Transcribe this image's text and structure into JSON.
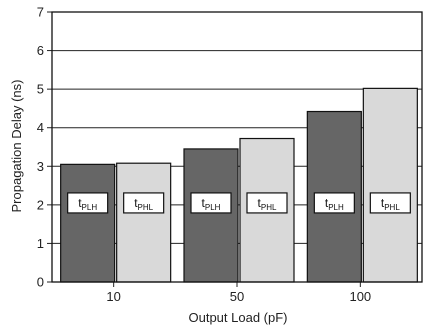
{
  "chart_data": {
    "type": "bar",
    "xlabel": "Output Load (pF)",
    "ylabel": "Propagation Delay (ns)",
    "ylim": [
      0,
      7
    ],
    "yticks": [
      "0",
      "1",
      "2",
      "3",
      "4",
      "5",
      "6",
      "7"
    ],
    "categories": [
      "10",
      "50",
      "100"
    ],
    "grid": true,
    "series": [
      {
        "name": "tPLH",
        "label_main": "t",
        "label_sub": "PLH",
        "color": "#666666",
        "values": [
          3.05,
          3.45,
          4.42
        ]
      },
      {
        "name": "tPHL",
        "label_main": "t",
        "label_sub": "PHL",
        "color": "#d9d9d9",
        "values": [
          3.08,
          3.72,
          5.02
        ]
      }
    ]
  }
}
